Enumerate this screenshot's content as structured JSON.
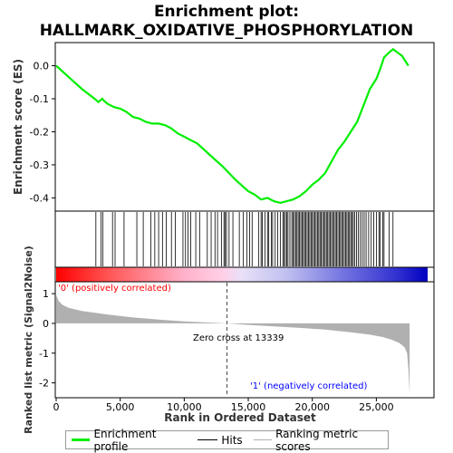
{
  "title_line1": "Enrichment plot:",
  "title_line2": "HALLMARK_OXIDATIVE_PHOSPHORYLATION",
  "colors": {
    "es_line": "#00ee00",
    "hits": "#000000",
    "metric_fill": "#b0b0b0",
    "pos_label": "#ff0000",
    "neg_label": "#0000ff",
    "zero_cross": "#444444"
  },
  "chart_data": {
    "type": "line",
    "top_panel": {
      "ylabel": "Enrichment score (ES)",
      "ylim": [
        -0.44,
        0.07
      ],
      "yticks": [
        0.0,
        -0.1,
        -0.2,
        -0.3,
        -0.4
      ],
      "ytick_labels": [
        "0.0",
        "-0.1",
        "-0.2",
        "-0.3",
        "-0.4"
      ],
      "series": [
        {
          "name": "Enrichment profile",
          "x": [
            0,
            1000,
            2000,
            3000,
            3300,
            3600,
            3700,
            4000,
            4500,
            5000,
            5500,
            6000,
            6500,
            7000,
            7500,
            8000,
            8500,
            9000,
            9500,
            10000,
            10500,
            11000,
            12000,
            13000,
            14000,
            15000,
            15500,
            16000,
            16500,
            17000,
            17500,
            18000,
            18500,
            19000,
            19500,
            20000,
            20500,
            21000,
            21500,
            22000,
            22500,
            23000,
            23500,
            24000,
            24500,
            25000,
            25300,
            25600,
            26000,
            26300,
            27000,
            27500
          ],
          "y": [
            0.0,
            -0.035,
            -0.07,
            -0.1,
            -0.11,
            -0.1,
            -0.105,
            -0.115,
            -0.125,
            -0.13,
            -0.14,
            -0.155,
            -0.16,
            -0.17,
            -0.175,
            -0.175,
            -0.18,
            -0.19,
            -0.205,
            -0.215,
            -0.225,
            -0.235,
            -0.27,
            -0.305,
            -0.345,
            -0.38,
            -0.39,
            -0.405,
            -0.4,
            -0.41,
            -0.415,
            -0.41,
            -0.405,
            -0.395,
            -0.38,
            -0.36,
            -0.345,
            -0.325,
            -0.29,
            -0.255,
            -0.23,
            -0.2,
            -0.17,
            -0.12,
            -0.07,
            -0.04,
            -0.01,
            0.025,
            0.04,
            0.05,
            0.03,
            0.0
          ]
        }
      ]
    },
    "hits_panel": {
      "legend_label": "Hits",
      "hit_positions": [
        3100,
        3500,
        3650,
        4400,
        4600,
        5300,
        6300,
        6800,
        7400,
        7700,
        8000,
        8300,
        8600,
        9000,
        9300,
        9900,
        10100,
        10300,
        10500,
        10900,
        11200,
        11800,
        12100,
        12400,
        12600,
        12900,
        13100,
        13200,
        13300,
        13500,
        13800,
        14300,
        14600,
        14900,
        15100,
        15300,
        15800,
        16000,
        16100,
        16300,
        16500,
        16600,
        16800,
        16900,
        17100,
        17300,
        17500,
        17700,
        17800,
        17900,
        18000,
        18100,
        18250,
        18400,
        18500,
        18600,
        18700,
        18800,
        18900,
        19000,
        19100,
        19200,
        19300,
        19400,
        19500,
        19600,
        19700,
        19800,
        19900,
        20000,
        20100,
        20200,
        20300,
        20400,
        20500,
        20600,
        20700,
        20800,
        20900,
        21000,
        21100,
        21200,
        21300,
        21400,
        21500,
        21600,
        21700,
        21800,
        21900,
        22000,
        22100,
        22200,
        22300,
        22400,
        22500,
        22600,
        22700,
        22800,
        22900,
        23000,
        23100,
        23200,
        23300,
        23450,
        23600,
        23750,
        23900,
        24050,
        24200,
        24400,
        24600,
        24800,
        25000,
        25200,
        25300,
        25500,
        25600,
        26000,
        26300
      ]
    },
    "bottom_panel": {
      "ylabel": "Ranked list metric (Signal2Noise)",
      "ylim": [
        -2.5,
        1.4
      ],
      "yticks": [
        1,
        0,
        -1,
        -2
      ],
      "ytick_labels": [
        "1",
        "0",
        "-1",
        "-2"
      ],
      "legend_label": "Ranking metric scores",
      "metric_x": [
        0,
        200,
        500,
        1000,
        2000,
        4000,
        6000,
        8000,
        10000,
        12000,
        13339,
        15000,
        17000,
        19000,
        21000,
        23000,
        24500,
        25500,
        26200,
        26800,
        27200,
        27400,
        27500,
        27600
      ],
      "metric_y": [
        0.95,
        0.75,
        0.62,
        0.52,
        0.42,
        0.3,
        0.2,
        0.13,
        0.07,
        0.03,
        0.0,
        -0.05,
        -0.1,
        -0.15,
        -0.21,
        -0.3,
        -0.38,
        -0.46,
        -0.55,
        -0.66,
        -0.8,
        -1.0,
        -1.5,
        -2.35
      ],
      "pos_label": "'0' (positively correlated)",
      "neg_label": "'1' (negatively correlated)",
      "zero_cross_label": "Zero cross at 13339",
      "zero_cross_x": 13339
    },
    "xlabel": "Rank in Ordered Dataset",
    "xlim": [
      0,
      29500
    ],
    "xticks": [
      0,
      5000,
      10000,
      15000,
      20000,
      25000
    ],
    "xtick_labels": [
      "0",
      "5,000",
      "10,000",
      "15,000",
      "20,000",
      "25,000"
    ],
    "legend_position": "bottom",
    "grid": false
  },
  "legend": {
    "es_label": "Enrichment profile",
    "hits_label": "Hits",
    "metric_label": "Ranking metric scores"
  }
}
